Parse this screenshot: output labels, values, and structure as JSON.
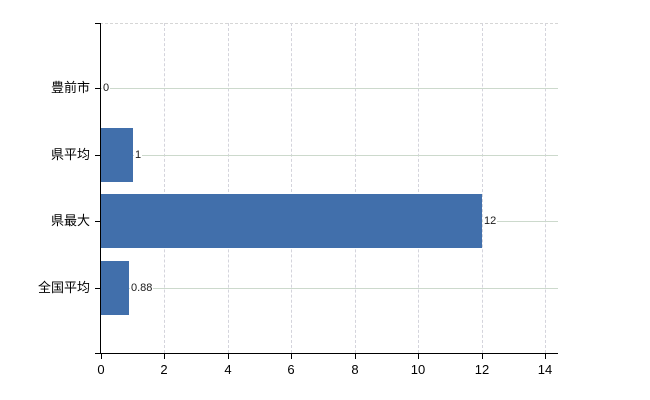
{
  "chart_data": {
    "type": "bar",
    "orientation": "horizontal",
    "title": "",
    "xlabel": "",
    "ylabel": "",
    "categories": [
      "豊前市",
      "県平均",
      "県最大",
      "全国平均"
    ],
    "values": [
      0,
      1,
      12,
      0.88
    ],
    "value_labels": [
      "0",
      "1",
      "12",
      "0.88"
    ],
    "x_ticks": [
      0,
      2,
      4,
      6,
      8,
      10,
      12,
      14
    ],
    "x_tick_labels": [
      "0",
      "2",
      "4",
      "6",
      "8",
      "10",
      "12",
      "14"
    ],
    "xlim": [
      0,
      14
    ],
    "legend_position": "none",
    "grid": {
      "horizontal": "solid, at each category center",
      "vertical": "dashed, at each x tick"
    }
  },
  "colors": {
    "bar": "#416fab",
    "horizontal_grid": "#ccd9cc",
    "vertical_grid": "#d4d4dc",
    "axis": "#000000",
    "text": "#000000",
    "background": "#ffffff"
  }
}
